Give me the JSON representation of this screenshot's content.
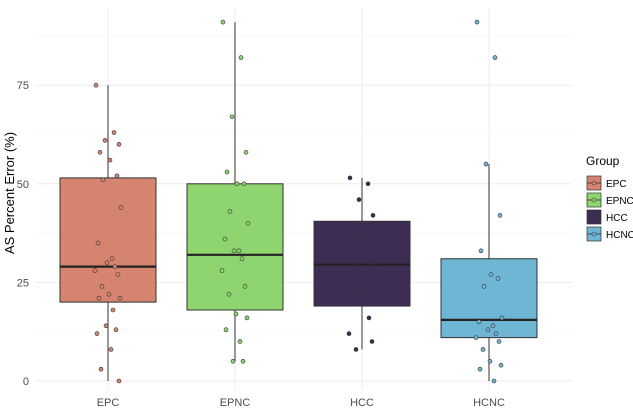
{
  "chart_data": {
    "type": "boxplot",
    "ylabel": "AS Percent Error (%)",
    "xlabel": "",
    "categories": [
      "EPC",
      "EPNC",
      "HCC",
      "HCNC"
    ],
    "y_ticks": [
      0,
      25,
      50,
      75
    ],
    "ylim": [
      -2,
      95
    ],
    "grid": true,
    "legend": {
      "title": "Group",
      "position": "right",
      "labels": [
        "EPC",
        "EPNC",
        "HCC",
        "HCNC"
      ]
    },
    "series": [
      {
        "name": "EPC",
        "color": "#d4846f",
        "box": {
          "whisker_low": 0,
          "q1": 20,
          "median": 29,
          "q3": 51.5,
          "whisker_high": 75
        },
        "points": [
          75,
          63,
          61,
          60,
          58,
          56,
          52,
          51,
          44,
          35,
          31,
          30,
          29,
          28,
          27,
          24,
          22,
          21,
          21,
          18,
          14,
          13,
          12,
          8,
          3,
          0
        ]
      },
      {
        "name": "EPNC",
        "color": "#8ed46f",
        "box": {
          "whisker_low": 5,
          "q1": 18,
          "median": 32,
          "q3": 50,
          "whisker_high": 91
        },
        "points": [
          91,
          82,
          67,
          58,
          53,
          50,
          50,
          43,
          40,
          36,
          33,
          33,
          31,
          28,
          24,
          22,
          17,
          16,
          13,
          10,
          5,
          5
        ]
      },
      {
        "name": "HCC",
        "color": "#3d2c54",
        "box": {
          "whisker_low": 8,
          "q1": 19,
          "median": 29.5,
          "q3": 40.5,
          "whisker_high": 51.5
        },
        "points": [
          51.5,
          50,
          46,
          42,
          40,
          37,
          30,
          29,
          28,
          25,
          23,
          20,
          16,
          12,
          10,
          8
        ]
      },
      {
        "name": "HCNC",
        "color": "#6fb5d4",
        "box": {
          "whisker_low": 0,
          "q1": 11,
          "median": 15.5,
          "q3": 31,
          "whisker_high": 55
        },
        "points": [
          91,
          82,
          55,
          42,
          33,
          27,
          26,
          24,
          16,
          15,
          14,
          13,
          12,
          11,
          10,
          8,
          5,
          4,
          3,
          0
        ]
      }
    ]
  }
}
